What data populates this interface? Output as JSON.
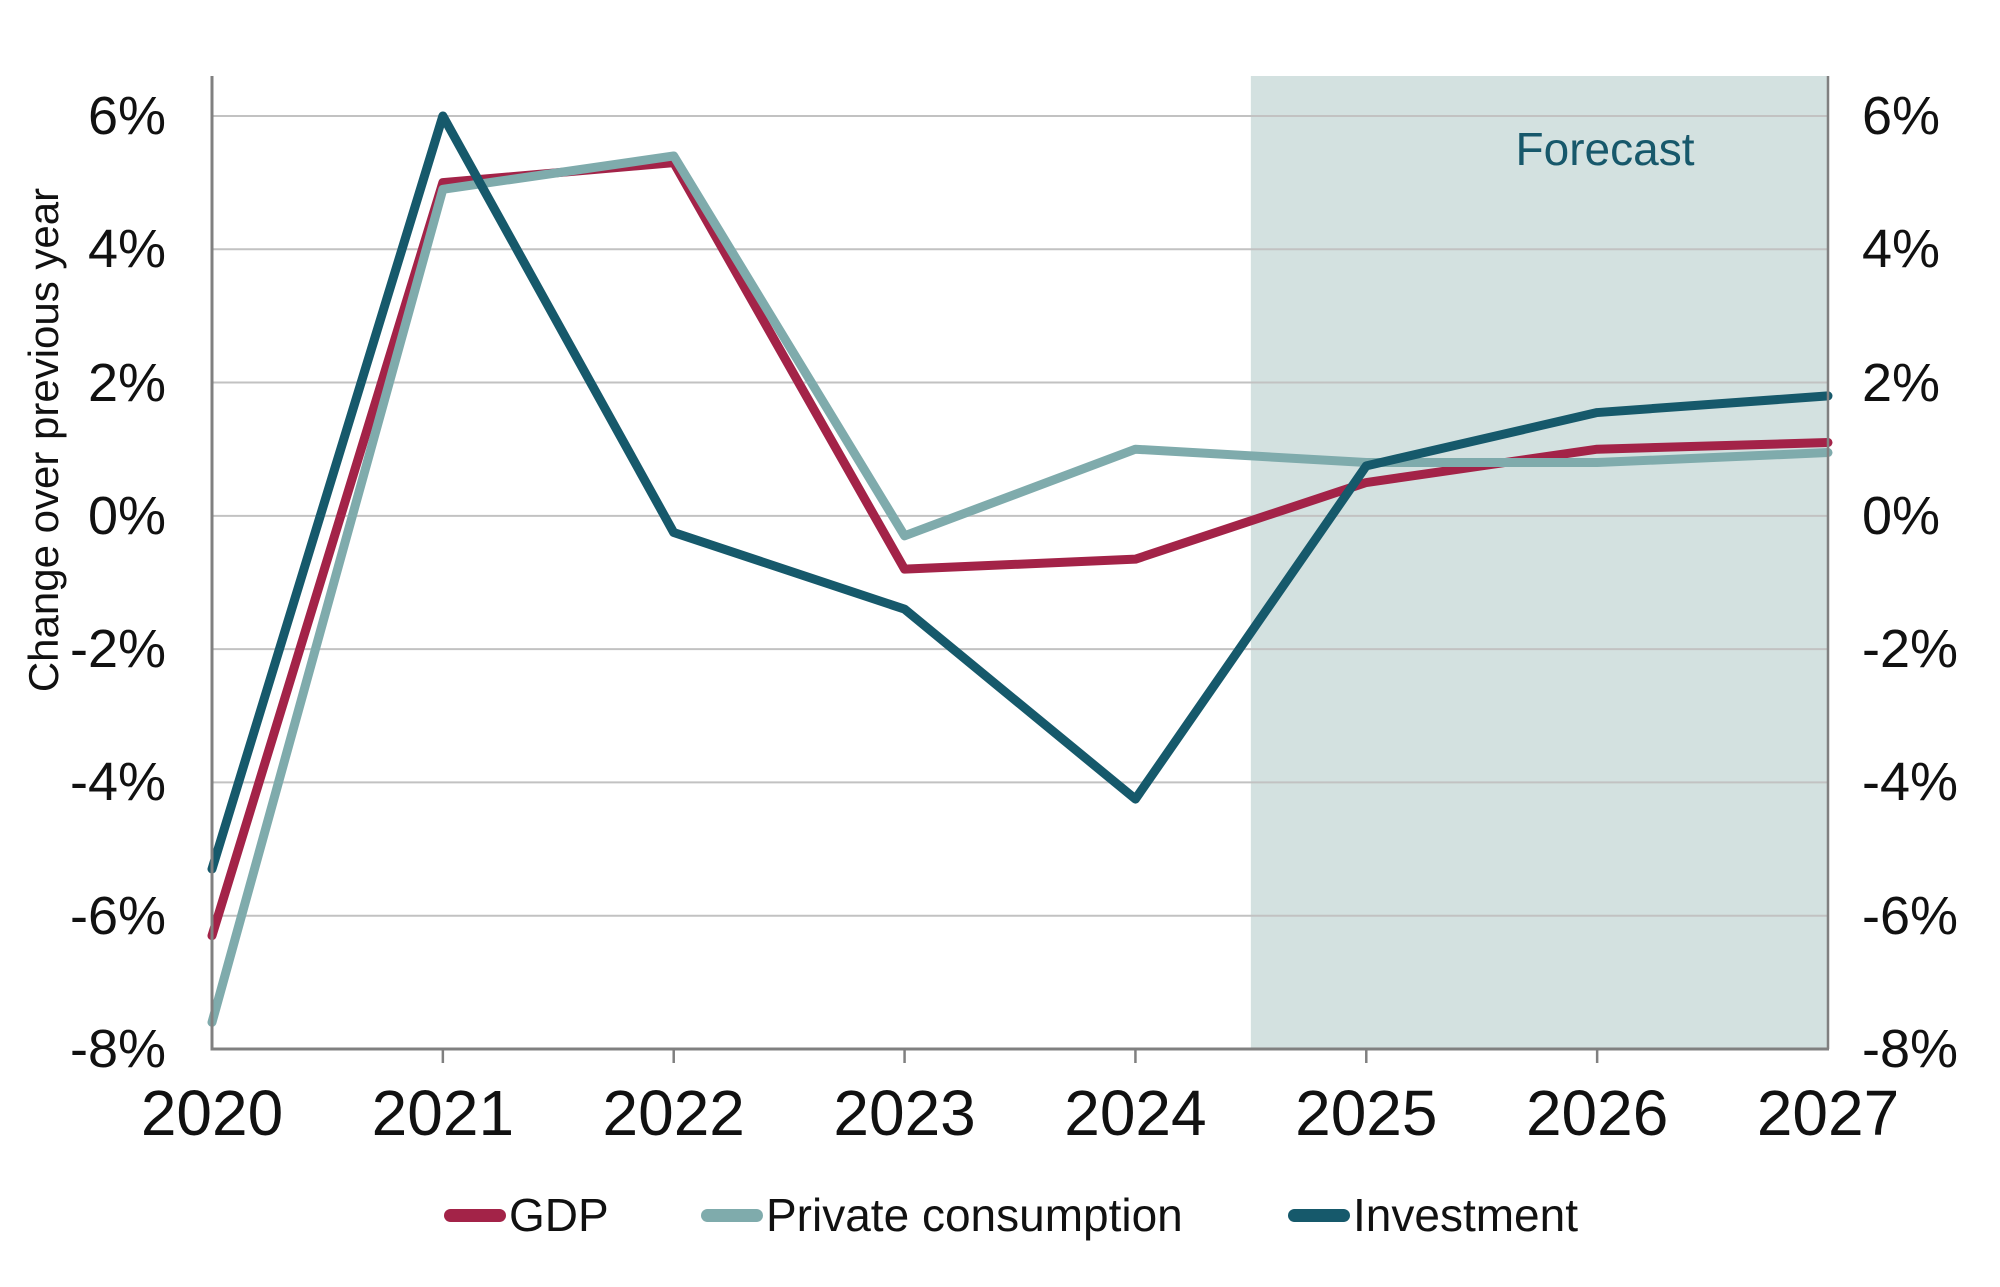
{
  "chart_data": {
    "type": "line",
    "x": [
      2020,
      2021,
      2022,
      2023,
      2024,
      2025,
      2026,
      2027
    ],
    "x_labels": [
      "2020",
      "2021",
      "2022",
      "2023",
      "2024",
      "2025",
      "2026",
      "2027"
    ],
    "series": [
      {
        "name": "GDP",
        "color": "#a32348",
        "values": [
          -6.3,
          5.0,
          5.3,
          -0.8,
          -0.65,
          0.5,
          1.0,
          1.1
        ]
      },
      {
        "name": "Private consumption",
        "color": "#7fabac",
        "values": [
          -7.6,
          4.9,
          5.4,
          -0.3,
          1.0,
          0.8,
          0.8,
          0.95
        ]
      },
      {
        "name": "Investment",
        "color": "#16596b",
        "values": [
          -5.3,
          6.0,
          -0.25,
          -1.4,
          -4.25,
          0.75,
          1.55,
          1.8
        ]
      }
    ],
    "y_axis_title": "Change over previous year",
    "y_ticks": [
      {
        "label": "6%",
        "value": 6
      },
      {
        "label": "4%",
        "value": 4
      },
      {
        "label": "2%",
        "value": 2
      },
      {
        "label": "0%",
        "value": 0
      },
      {
        "label": "-2%",
        "value": -2
      },
      {
        "label": "-4%",
        "value": -4
      },
      {
        "label": "-6%",
        "value": -6
      },
      {
        "label": "-8%",
        "value": -8
      }
    ],
    "ylim": [
      -8,
      6.6
    ],
    "grid": "horizontal",
    "legend_position": "bottom",
    "forecast_region": {
      "label": "Forecast",
      "x_start": 2024.5,
      "x_end": 2027,
      "fill": "#d3e1e0",
      "text_color": "#17586b"
    },
    "axis_color": "#808080",
    "gridline_color": "#c2c2c2"
  }
}
